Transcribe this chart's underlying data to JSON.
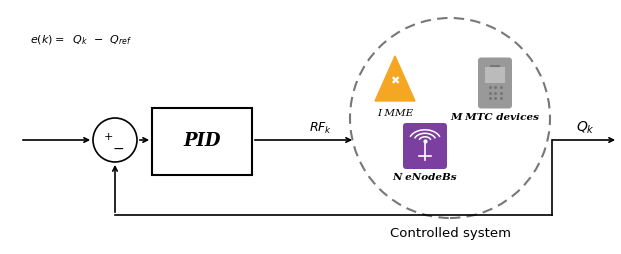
{
  "bg_color": "#ffffff",
  "figsize": [
    6.21,
    2.54
  ],
  "dpi": 100,
  "text_color": "#000000",
  "line_color": "#000000",
  "dashed_color": "#666666",
  "arrow_color": "#000000",
  "mme_color": "#F5A623",
  "enb_color": "#7B3FA0",
  "phone_color": "#999999",
  "phone_screen_color": "#bbbbbb",
  "controlled_system_label": "Controlled system",
  "mme_label": "I MME",
  "mtc_label": "M MTC devices",
  "enodeb_label": "N eNodeBs"
}
